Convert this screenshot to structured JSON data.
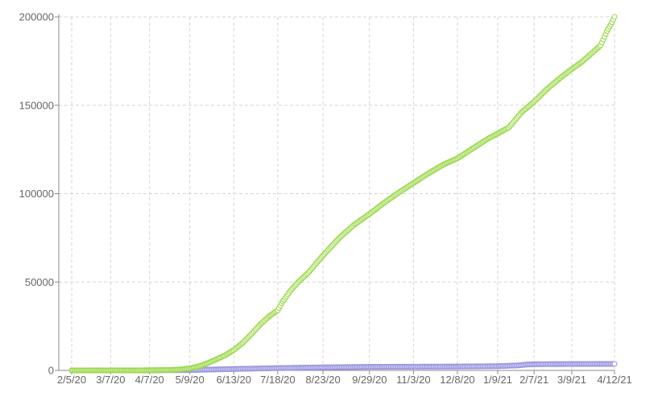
{
  "chart_data": {
    "type": "scatter",
    "title": "",
    "xlabel": "",
    "ylabel": "",
    "x_axis": {
      "kind": "date",
      "start": "2020-02-05",
      "end": "2021-04-12",
      "tick_labels": [
        "2/5/20",
        "3/7/20",
        "4/7/20",
        "5/9/20",
        "6/13/20",
        "7/18/20",
        "8/23/20",
        "9/29/20",
        "11/3/20",
        "12/8/20",
        "1/9/21",
        "2/7/21",
        "3/9/21",
        "4/12/21"
      ],
      "tick_dates": [
        "2020-02-05",
        "2020-03-07",
        "2020-04-07",
        "2020-05-09",
        "2020-06-13",
        "2020-07-18",
        "2020-08-23",
        "2020-09-29",
        "2020-11-03",
        "2020-12-08",
        "2021-01-09",
        "2021-02-07",
        "2021-03-09",
        "2021-04-12"
      ]
    },
    "y_axis": {
      "ylim": [
        0,
        200000
      ],
      "tick_values": [
        0,
        50000,
        100000,
        150000,
        200000
      ],
      "tick_labels": [
        "0",
        "50000",
        "100000",
        "150000",
        "200000"
      ]
    },
    "grid": true,
    "legend": "none",
    "series": [
      {
        "color": "#9bd84a",
        "x": [
          "2020-02-05",
          "2020-03-01",
          "2020-04-01",
          "2020-04-20",
          "2020-05-01",
          "2020-05-09",
          "2020-05-16",
          "2020-05-23",
          "2020-05-30",
          "2020-06-06",
          "2020-06-13",
          "2020-06-20",
          "2020-06-27",
          "2020-07-04",
          "2020-07-11",
          "2020-07-18",
          "2020-07-21",
          "2020-07-28",
          "2020-08-04",
          "2020-08-11",
          "2020-08-23",
          "2020-09-05",
          "2020-09-17",
          "2020-09-29",
          "2020-10-10",
          "2020-10-22",
          "2020-11-03",
          "2020-11-15",
          "2020-11-27",
          "2020-12-08",
          "2020-12-20",
          "2021-01-01",
          "2021-01-09",
          "2021-01-18",
          "2021-01-28",
          "2021-02-07",
          "2021-02-17",
          "2021-02-27",
          "2021-03-09",
          "2021-03-17",
          "2021-03-25",
          "2021-04-01",
          "2021-04-06",
          "2021-04-10",
          "2021-04-12"
        ],
        "y": [
          0,
          0,
          50,
          200,
          500,
          1200,
          2200,
          4000,
          6200,
          8500,
          11500,
          15500,
          20500,
          26000,
          30500,
          34000,
          38000,
          45000,
          50500,
          55000,
          65000,
          75000,
          82500,
          88500,
          94500,
          100500,
          106000,
          111500,
          116500,
          120000,
          125500,
          131000,
          134000,
          137500,
          146000,
          152000,
          159000,
          165000,
          170500,
          174500,
          179500,
          184000,
          192000,
          197000,
          200000
        ]
      },
      {
        "color": "#9b95e0",
        "x": [
          "2020-02-05",
          "2020-04-01",
          "2020-05-09",
          "2020-06-13",
          "2020-07-18",
          "2020-08-23",
          "2020-09-29",
          "2020-11-03",
          "2020-12-08",
          "2021-01-09",
          "2021-01-25",
          "2021-02-01",
          "2021-02-07",
          "2021-03-09",
          "2021-04-12"
        ],
        "y": [
          0,
          0,
          200,
          800,
          1300,
          1700,
          2000,
          2100,
          2200,
          2400,
          2800,
          3300,
          3500,
          3600,
          3700
        ]
      }
    ]
  }
}
